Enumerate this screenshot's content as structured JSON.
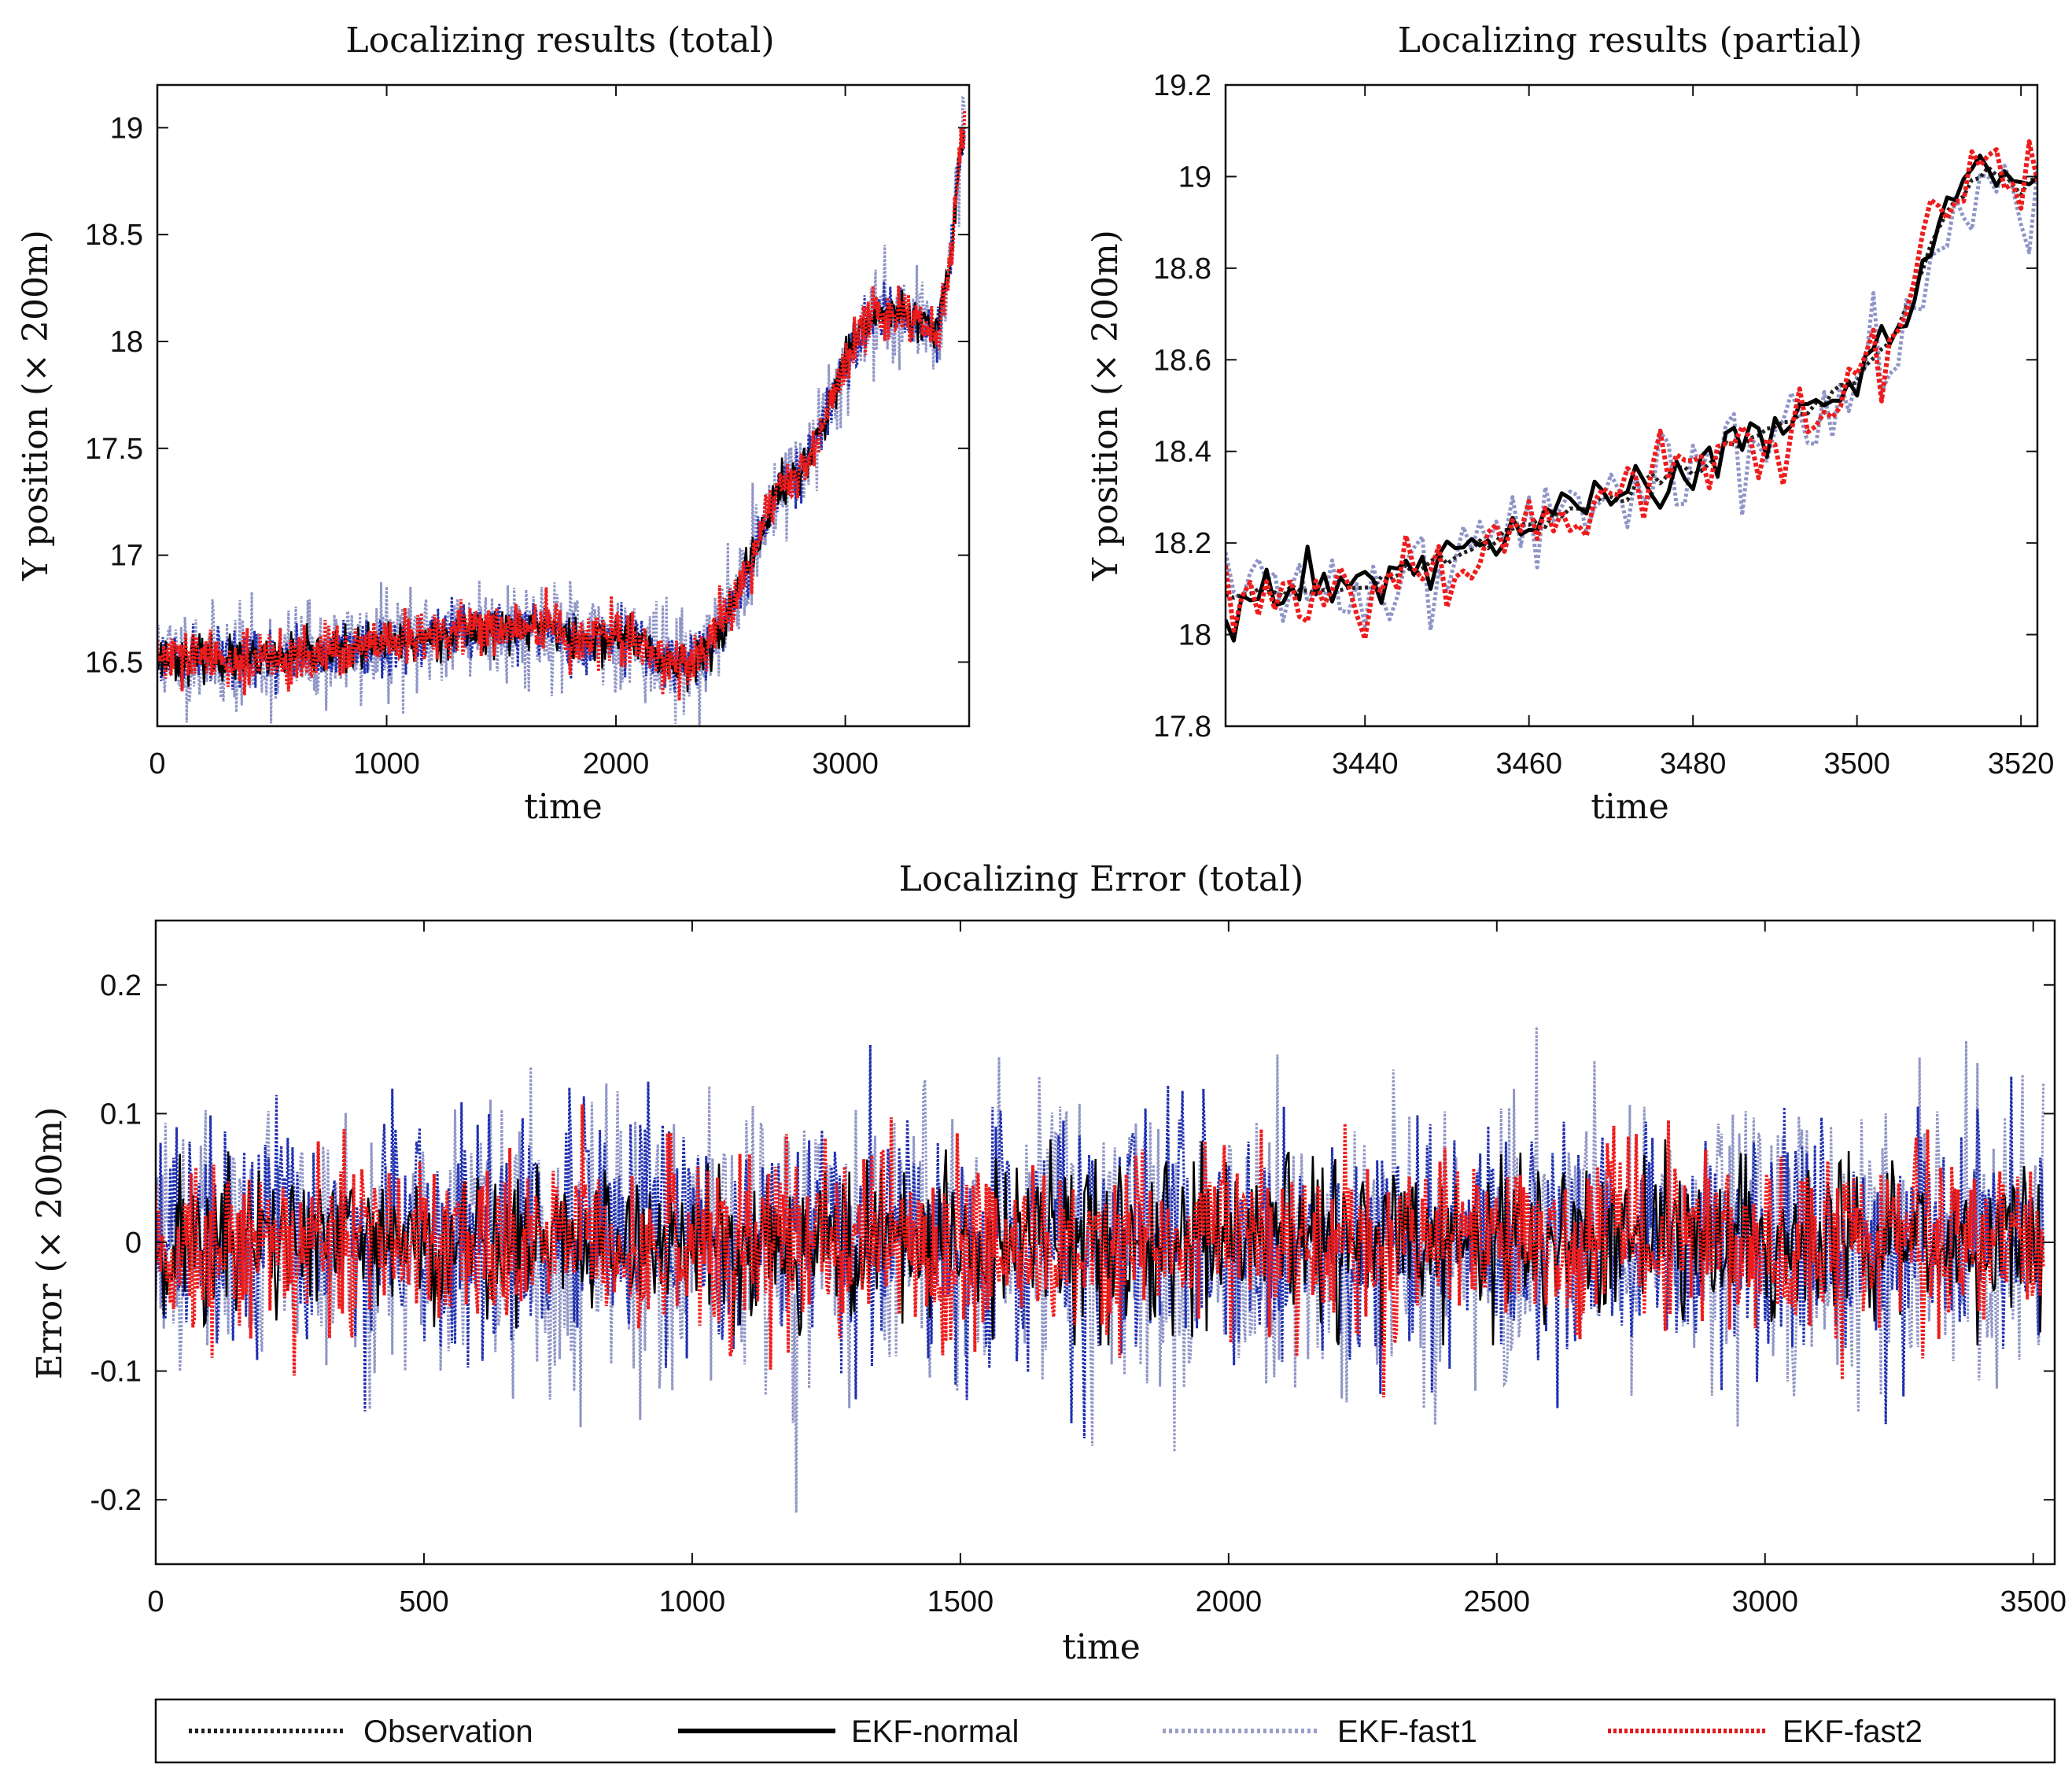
{
  "chart_data": [
    {
      "id": "total",
      "type": "line",
      "title": "Localizing results (total)",
      "xlabel": "time",
      "ylabel": "Y position (× 200m)",
      "xlim": [
        0,
        3540
      ],
      "ylim": [
        16.2,
        19.2
      ],
      "xticks": [
        0,
        1000,
        2000,
        3000
      ],
      "yticks": [
        16.5,
        17,
        17.5,
        18,
        18.5,
        19
      ],
      "x_tick_labels": [
        "0",
        "1000",
        "2000",
        "3000"
      ],
      "y_tick_labels": [
        "16.5",
        "17",
        "17.5",
        "18",
        "18.5",
        "19"
      ],
      "trend": {
        "x": [
          0,
          200,
          400,
          600,
          800,
          1000,
          1200,
          1400,
          1600,
          1700,
          1800,
          1900,
          2000,
          2100,
          2200,
          2300,
          2400,
          2500,
          2600,
          2700,
          2800,
          2900,
          3000,
          3100,
          3200,
          3300,
          3400,
          3450,
          3500,
          3520
        ],
        "y": [
          16.52,
          16.52,
          16.5,
          16.52,
          16.55,
          16.58,
          16.62,
          16.66,
          16.65,
          16.68,
          16.6,
          16.6,
          16.62,
          16.6,
          16.5,
          16.5,
          16.55,
          16.75,
          17.0,
          17.3,
          17.38,
          17.6,
          17.9,
          18.1,
          18.15,
          18.1,
          18.05,
          18.3,
          18.9,
          19.0
        ]
      },
      "series": [
        {
          "name": "EKF-fast1",
          "noise": 0.12
        },
        {
          "name": "EKF-normal",
          "noise": 0.05
        },
        {
          "name": "EKF-fast2",
          "noise": 0.06
        }
      ]
    },
    {
      "id": "partial",
      "type": "line",
      "title": "Localizing results (partial)",
      "xlabel": "time",
      "ylabel": "Y position (× 200m)",
      "xlim": [
        3423,
        3522
      ],
      "ylim": [
        17.8,
        19.2
      ],
      "xticks": [
        3440,
        3460,
        3480,
        3500,
        3520
      ],
      "yticks": [
        17.8,
        18,
        18.2,
        18.4,
        18.6,
        18.8,
        19,
        19.2
      ],
      "x_tick_labels": [
        "3440",
        "3460",
        "3480",
        "3500",
        "3520"
      ],
      "y_tick_labels": [
        "17.8",
        "18",
        "18.2",
        "18.4",
        "18.6",
        "18.8",
        "19",
        "19.2"
      ],
      "trend": {
        "x": [
          3423,
          3430,
          3440,
          3450,
          3460,
          3470,
          3480,
          3490,
          3495,
          3500,
          3505,
          3510,
          3515,
          3518,
          3520,
          3522
        ],
        "y": [
          18.08,
          18.09,
          18.11,
          18.16,
          18.24,
          18.3,
          18.36,
          18.45,
          18.5,
          18.56,
          18.66,
          18.9,
          19.02,
          19.0,
          18.96,
          18.99
        ]
      },
      "series": [
        {
          "name": "Observation",
          "noise": 0.01
        },
        {
          "name": "EKF-normal",
          "noise": 0.03
        },
        {
          "name": "EKF-fast1",
          "noise": 0.06
        },
        {
          "name": "EKF-fast2",
          "noise": 0.05
        }
      ]
    },
    {
      "id": "error",
      "type": "line",
      "title": "Localizing Error (total)",
      "xlabel": "time",
      "ylabel": "Error (× 200m)",
      "xlim": [
        0,
        3540
      ],
      "ylim": [
        -0.25,
        0.25
      ],
      "xticks": [
        0,
        500,
        1000,
        1500,
        2000,
        2500,
        3000,
        3500
      ],
      "yticks": [
        -0.2,
        -0.1,
        0,
        0.1,
        0.2
      ],
      "x_tick_labels": [
        "0",
        "500",
        "1000",
        "1500",
        "2000",
        "2500",
        "3000",
        "3500"
      ],
      "y_tick_labels": [
        "-0.2",
        "-0.1",
        "0",
        "0.1",
        "0.2"
      ],
      "series": [
        {
          "name": "EKF-fast1",
          "std": 0.055,
          "max_abs": 0.21
        },
        {
          "name": "EKF-normal",
          "std": 0.03,
          "max_abs": 0.08
        },
        {
          "name": "EKF-fast2",
          "std": 0.035,
          "max_abs": 0.14
        }
      ]
    }
  ],
  "legend": {
    "items": [
      {
        "label": "Observation",
        "color": "#222222",
        "style": "dotted"
      },
      {
        "label": "EKF-normal",
        "color": "#000000",
        "style": "solid"
      },
      {
        "label": "EKF-fast1",
        "color": "#9aa0c8",
        "style": "light-dotted"
      },
      {
        "label": "EKF-fast2",
        "color": "#e31a1c",
        "style": "dotted"
      }
    ]
  },
  "colors": {
    "observation": "#222222",
    "ekf_normal": "#000000",
    "ekf_fast1": "#8f95c6",
    "ekf_blue": "#1f2fb0",
    "ekf_fast2": "#ee1c1c"
  }
}
